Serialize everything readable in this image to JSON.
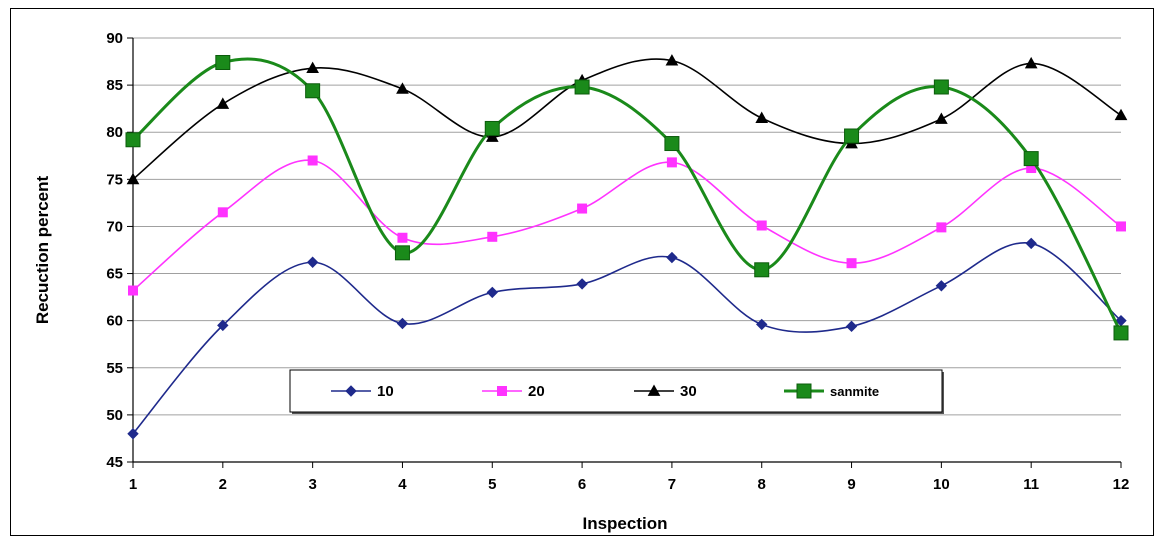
{
  "chart_data": {
    "type": "line",
    "title": "",
    "xlabel": "Inspection",
    "ylabel": "Recuction percent",
    "x": [
      1,
      2,
      3,
      4,
      5,
      6,
      7,
      8,
      9,
      10,
      11,
      12
    ],
    "ylim": [
      45,
      90
    ],
    "yticks": [
      45,
      50,
      55,
      60,
      65,
      70,
      75,
      80,
      85,
      90
    ],
    "grid": true,
    "legend_position": "bottom-center",
    "series": [
      {
        "name": "10",
        "color": "#1f2a8c",
        "marker": "diamond",
        "values": [
          48,
          59.5,
          66.2,
          59.7,
          63,
          63.9,
          66.7,
          59.6,
          59.4,
          63.7,
          68.2,
          60
        ]
      },
      {
        "name": "20",
        "color": "#ff33ff",
        "marker": "square",
        "values": [
          63.2,
          71.5,
          77,
          68.8,
          68.9,
          71.9,
          76.8,
          70.1,
          66.1,
          69.9,
          76.2,
          70
        ]
      },
      {
        "name": "30",
        "color": "#000000",
        "marker": "triangle",
        "values": [
          75,
          83,
          86.8,
          84.6,
          79.5,
          85.5,
          87.6,
          81.5,
          78.8,
          81.4,
          87.3,
          81.8
        ]
      },
      {
        "name": "sanmite",
        "color": "#1a8a1a",
        "marker": "square-large",
        "values": [
          79.2,
          87.4,
          84.4,
          67.2,
          80.4,
          84.8,
          78.8,
          65.4,
          79.6,
          84.8,
          77.2,
          58.7
        ]
      }
    ]
  }
}
